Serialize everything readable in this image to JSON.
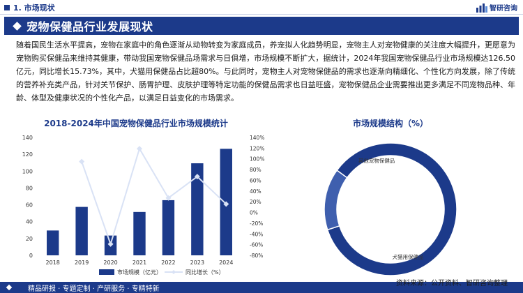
{
  "header": {
    "section": "1. 市场现状",
    "brand": "智研咨询",
    "title": "宠物保健品行业发展现状"
  },
  "intro": "随着国民生活水平提高，宠物在家庭中的角色逐渐从动物转变为家庭成员，养宠拟人化趋势明显，宠物主人对宠物健康的关注度大幅提升，更愿意为宠物购买保健品来维持其健康，带动我国宠物保健品场需求与日俱增，市场规模不断扩大，据统计，2024年我国宠物保健品行业市场规模达126.50亿元，同比增长15.73%，其中，犬猫用保健品占比超80%。与此同时，宠物主人对宠物保健品的需求也逐渐向精细化、个性化方向发展，除了传统的营养补充类产品，针对关节保护、肠胃护理、皮肤护理等特定功能的保健品需求也日益旺盛，宠物保健品企业需要推出更多满足不同宠物品种、年龄、体型及健康状况的个性化产品，以满足日益变化的市场需求。",
  "footer": {
    "left": "精品研报 · 专题定制 · 产研服务 · 专精特新",
    "source": "资料来源：公开资料、智研咨询整理"
  },
  "colors": {
    "bar": "#1c3a8a",
    "line": "#d9e2f5",
    "donut_main": "#1c3a8a",
    "donut_minor": "#3f5fae"
  },
  "chart_data": [
    {
      "type": "bar",
      "title": "2018-2024年中国宠物保健品行业市场规模统计",
      "categories": [
        "2018",
        "2019",
        "2020",
        "2021",
        "2022",
        "2023",
        "2024"
      ],
      "series": [
        {
          "name": "市场规模（亿元）",
          "type": "bar",
          "axis": "left",
          "values": [
            29.5,
            57.5,
            23.5,
            51.5,
            65.5,
            109.3,
            126.5
          ]
        },
        {
          "name": "同比增长（%）",
          "type": "line",
          "axis": "right",
          "values": [
            null,
            95,
            -59,
            119,
            27,
            67,
            15.73
          ]
        }
      ],
      "y_left": {
        "min": 0,
        "max": 140,
        "ticks": [
          "0",
          "20",
          "40",
          "60",
          "80",
          "100",
          "120",
          "140"
        ]
      },
      "y_right": {
        "min": -80,
        "max": 140,
        "ticks": [
          "-80%",
          "-60%",
          "-40%",
          "-20%",
          "0%",
          "20%",
          "40%",
          "60%",
          "80%",
          "100%",
          "120%",
          "140%"
        ]
      },
      "legend": "bottom"
    },
    {
      "type": "pie",
      "title": "市场规模结构（%）",
      "labels": [
        "犬猫用保健品",
        "其他宠物保健品"
      ],
      "values": [
        85,
        15
      ]
    }
  ]
}
